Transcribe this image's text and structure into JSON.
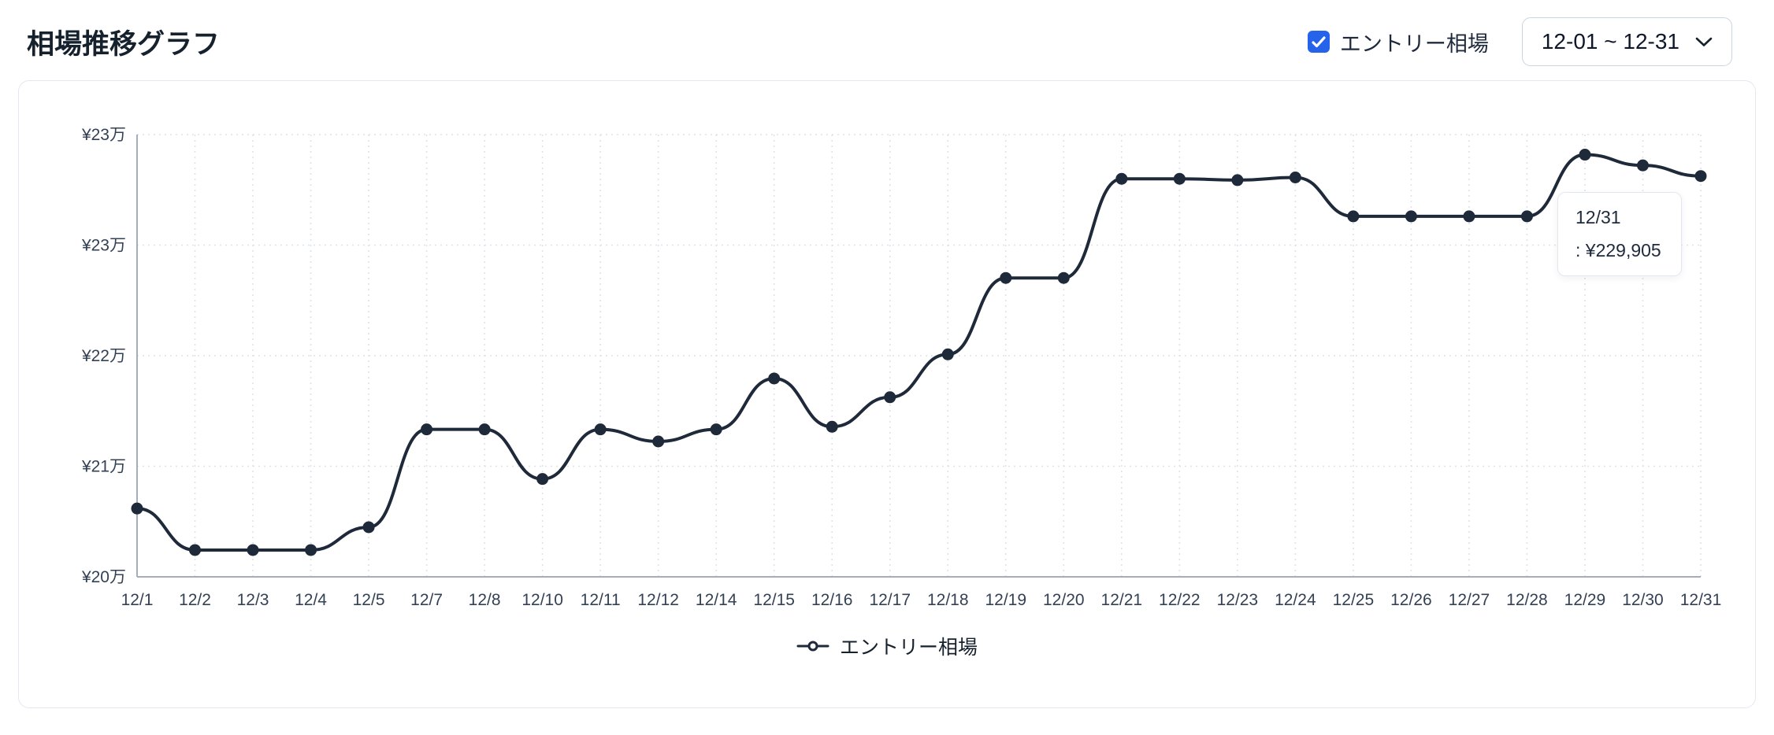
{
  "header": {
    "title": "相場推移グラフ",
    "checkbox_label": "エントリー相場",
    "checkbox_checked": true,
    "date_range": "12-01 ~ 12-31"
  },
  "tooltip": {
    "date": "12/31",
    "value": ": ¥229,905"
  },
  "legend": {
    "label": "エントリー相場"
  },
  "colors": {
    "line": "#1e2939",
    "accent_blue": "#2563eb",
    "grid": "#dde3ea",
    "axis": "#a3adbb",
    "tick_text": "#334155"
  },
  "chart_data": {
    "type": "line",
    "title": "相場推移グラフ",
    "categories": [
      "12/1",
      "12/2",
      "12/3",
      "12/4",
      "12/5",
      "12/7",
      "12/8",
      "12/10",
      "12/11",
      "12/12",
      "12/14",
      "12/15",
      "12/16",
      "12/17",
      "12/18",
      "12/19",
      "12/20",
      "12/21",
      "12/22",
      "12/23",
      "12/24",
      "12/25",
      "12/26",
      "12/27",
      "12/28",
      "12/29",
      "12/30",
      "12/31"
    ],
    "series": [
      {
        "name": "エントリー相場",
        "values": [
          205100,
          202000,
          202000,
          202000,
          203700,
          211000,
          211000,
          207300,
          211000,
          210100,
          211000,
          214800,
          211200,
          213400,
          216600,
          222300,
          222300,
          229700,
          229700,
          229600,
          229800,
          226900,
          226900,
          226900,
          226900,
          231500,
          230700,
          229905
        ]
      }
    ],
    "ylim": [
      200000,
      233000
    ],
    "ytick_labels": [
      "¥23万",
      "¥23万",
      "¥22万",
      "¥21万",
      "¥20万"
    ],
    "xlabel": "",
    "ylabel": "",
    "grid": true,
    "grid_style": "dotted",
    "legend_position": "bottom",
    "tooltip_point": {
      "category": "12/31",
      "value": 229905
    }
  }
}
